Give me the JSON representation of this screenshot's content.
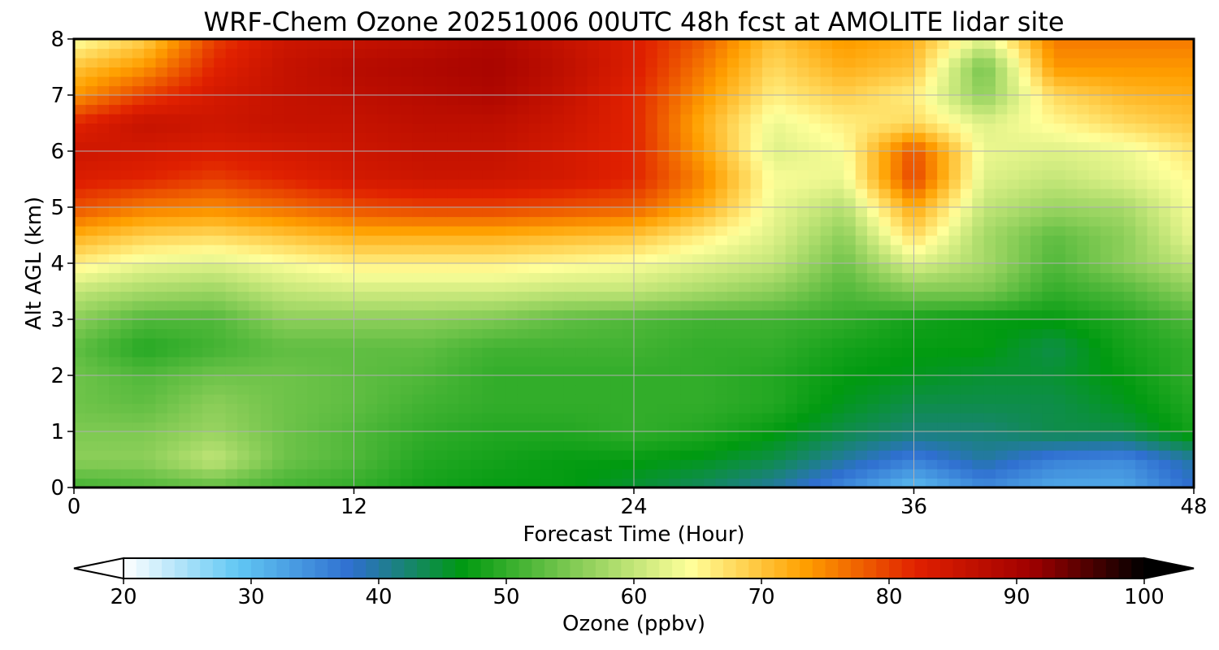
{
  "chart_data": {
    "type": "heatmap",
    "title": "WRF-Chem Ozone  20251006 00UTC 48h fcst at AMOLITE lidar site",
    "xlabel": "Forecast Time (Hour)",
    "ylabel": "Alt AGL (km)",
    "xlim": [
      0,
      48
    ],
    "ylim": [
      0,
      8
    ],
    "xticks": [
      "0",
      "12",
      "24",
      "36",
      "48"
    ],
    "yticks": [
      "0",
      "1",
      "2",
      "3",
      "4",
      "5",
      "6",
      "7",
      "8"
    ],
    "grid": true,
    "colorbar": {
      "label": "Ozone  (ppbv)",
      "range": [
        20,
        100
      ],
      "ticks": [
        "20",
        "30",
        "40",
        "50",
        "60",
        "70",
        "80",
        "90",
        "100"
      ],
      "extend": "both",
      "colors": [
        "#ffffff",
        "#62c8f4",
        "#2f6fd0",
        "#009a10",
        "#86cc56",
        "#ffff9a",
        "#ffa000",
        "#e02000",
        "#a00000",
        "#000000"
      ]
    },
    "x": [
      0,
      3,
      6,
      9,
      12,
      15,
      18,
      21,
      24,
      27,
      30,
      33,
      36,
      39,
      42,
      45,
      48
    ],
    "y": [
      0,
      0.5,
      1,
      1.5,
      2,
      2.5,
      3,
      3.5,
      4,
      4.5,
      5,
      5.5,
      6,
      6.5,
      7,
      7.5,
      8
    ],
    "z": [
      [
        51,
        52,
        53,
        51,
        50,
        48,
        47,
        47,
        45,
        43,
        40,
        35,
        30,
        35,
        32,
        32,
        38
      ],
      [
        56,
        56,
        60,
        54,
        52,
        49,
        48,
        47,
        47,
        46,
        44,
        40,
        36,
        40,
        36,
        35,
        40
      ],
      [
        55,
        55,
        57,
        54,
        52,
        50,
        49,
        49,
        50,
        49,
        47,
        44,
        42,
        42,
        44,
        44,
        48
      ],
      [
        54,
        53,
        56,
        54,
        53,
        51,
        50,
        50,
        50,
        50,
        49,
        46,
        44,
        44,
        44,
        46,
        49
      ],
      [
        54,
        52,
        54,
        54,
        53,
        52,
        50,
        50,
        50,
        50,
        49,
        47,
        46,
        45,
        45,
        47,
        50
      ],
      [
        53,
        49,
        51,
        53,
        53,
        53,
        51,
        51,
        51,
        50,
        50,
        48,
        47,
        47,
        44,
        48,
        50
      ],
      [
        56,
        52,
        52,
        56,
        56,
        56,
        55,
        53,
        52,
        51,
        51,
        50,
        48,
        47,
        47,
        49,
        52
      ],
      [
        60,
        58,
        57,
        60,
        61,
        61,
        61,
        60,
        60,
        58,
        56,
        52,
        55,
        55,
        50,
        52,
        56
      ],
      [
        66,
        63,
        62,
        64,
        66,
        66,
        66,
        65,
        64,
        62,
        60,
        54,
        62,
        58,
        52,
        56,
        60
      ],
      [
        72,
        69,
        68,
        70,
        72,
        72,
        72,
        71,
        70,
        66,
        62,
        56,
        68,
        58,
        53,
        56,
        63
      ],
      [
        79,
        76,
        75,
        77,
        79,
        80,
        80,
        79,
        78,
        72,
        63,
        59,
        73,
        60,
        57,
        58,
        64
      ],
      [
        83,
        82,
        80,
        82,
        84,
        85,
        85,
        84,
        82,
        75,
        64,
        63,
        80,
        62,
        60,
        62,
        65
      ],
      [
        85,
        84,
        83,
        84,
        85,
        86,
        86,
        84,
        82,
        73,
        62,
        64,
        79,
        63,
        62,
        63,
        67
      ],
      [
        82,
        86,
        85,
        86,
        86,
        87,
        87,
        85,
        82,
        72,
        63,
        66,
        68,
        62,
        65,
        68,
        70
      ],
      [
        74,
        80,
        84,
        86,
        87,
        88,
        89,
        86,
        82,
        74,
        66,
        69,
        66,
        56,
        68,
        71,
        72
      ],
      [
        70,
        74,
        82,
        86,
        88,
        89,
        90,
        87,
        83,
        76,
        68,
        72,
        70,
        54,
        74,
        74,
        74
      ],
      [
        64,
        69,
        80,
        85,
        86,
        87,
        89,
        86,
        83,
        78,
        70,
        74,
        72,
        62,
        76,
        76,
        76
      ]
    ]
  }
}
